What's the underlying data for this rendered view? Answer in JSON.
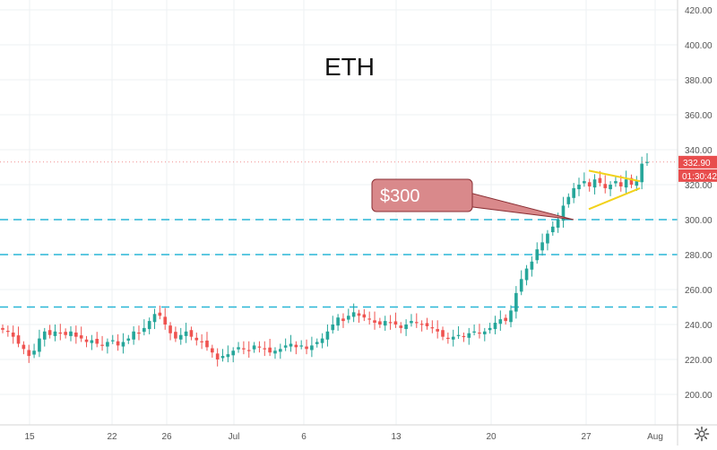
{
  "chart_data": {
    "type": "candlestick",
    "title": "ETH",
    "y_axis": {
      "ticks": [
        "200.00",
        "220.00",
        "240.00",
        "260.00",
        "280.00",
        "300.00",
        "320.00",
        "340.00",
        "360.00",
        "380.00",
        "400.00",
        "420.00"
      ],
      "tick_values": [
        200,
        220,
        240,
        260,
        280,
        300,
        320,
        340,
        360,
        380,
        400,
        420
      ],
      "range": [
        187,
        424
      ],
      "side": "right"
    },
    "x_axis": {
      "ticks": [
        "15",
        "22",
        "26",
        "Jul",
        "6",
        "13",
        "20",
        "27",
        "Aug"
      ]
    },
    "grid": true,
    "horizontal_levels": [
      300,
      280,
      250
    ],
    "level_color": "#29b6d6",
    "current_price": {
      "price_label": "332.90",
      "countdown": "01:30:42",
      "value": 332.9,
      "color": "#e84d4d"
    },
    "annotation": {
      "text": "$300",
      "target_value": 300
    },
    "triangle_pattern": {
      "color": "#f2d21b",
      "upper_line": [
        328,
        322
      ],
      "lower_line": [
        306,
        318
      ]
    },
    "up_color": "#26a69a",
    "down_color": "#ef5350",
    "closes": [
      237,
      236,
      233,
      229,
      226,
      222,
      225,
      232,
      236,
      234,
      236,
      235,
      234,
      236,
      233,
      232,
      230,
      231,
      229,
      228,
      230,
      231,
      228,
      230,
      232,
      236,
      235,
      238,
      242,
      246,
      245,
      240,
      235,
      232,
      234,
      236,
      233,
      231,
      230,
      227,
      224,
      220,
      222,
      223,
      225,
      227,
      226,
      225,
      228,
      227,
      226,
      224,
      225,
      226,
      228,
      229,
      227,
      228,
      226,
      228,
      230,
      232,
      236,
      240,
      244,
      242,
      245,
      247,
      245,
      244,
      243,
      241,
      240,
      242,
      241,
      240,
      238,
      240,
      242,
      241,
      240,
      239,
      238,
      236,
      233,
      232,
      233,
      234,
      233,
      235,
      236,
      235,
      236,
      238,
      241,
      243,
      242,
      248,
      258,
      266,
      272,
      276,
      283,
      287,
      292,
      296,
      300,
      308,
      313,
      318,
      320,
      322,
      319,
      323,
      321,
      318,
      320,
      322,
      319,
      323,
      320,
      322,
      332,
      333
    ]
  },
  "settings": {
    "icon": "gear-icon"
  }
}
